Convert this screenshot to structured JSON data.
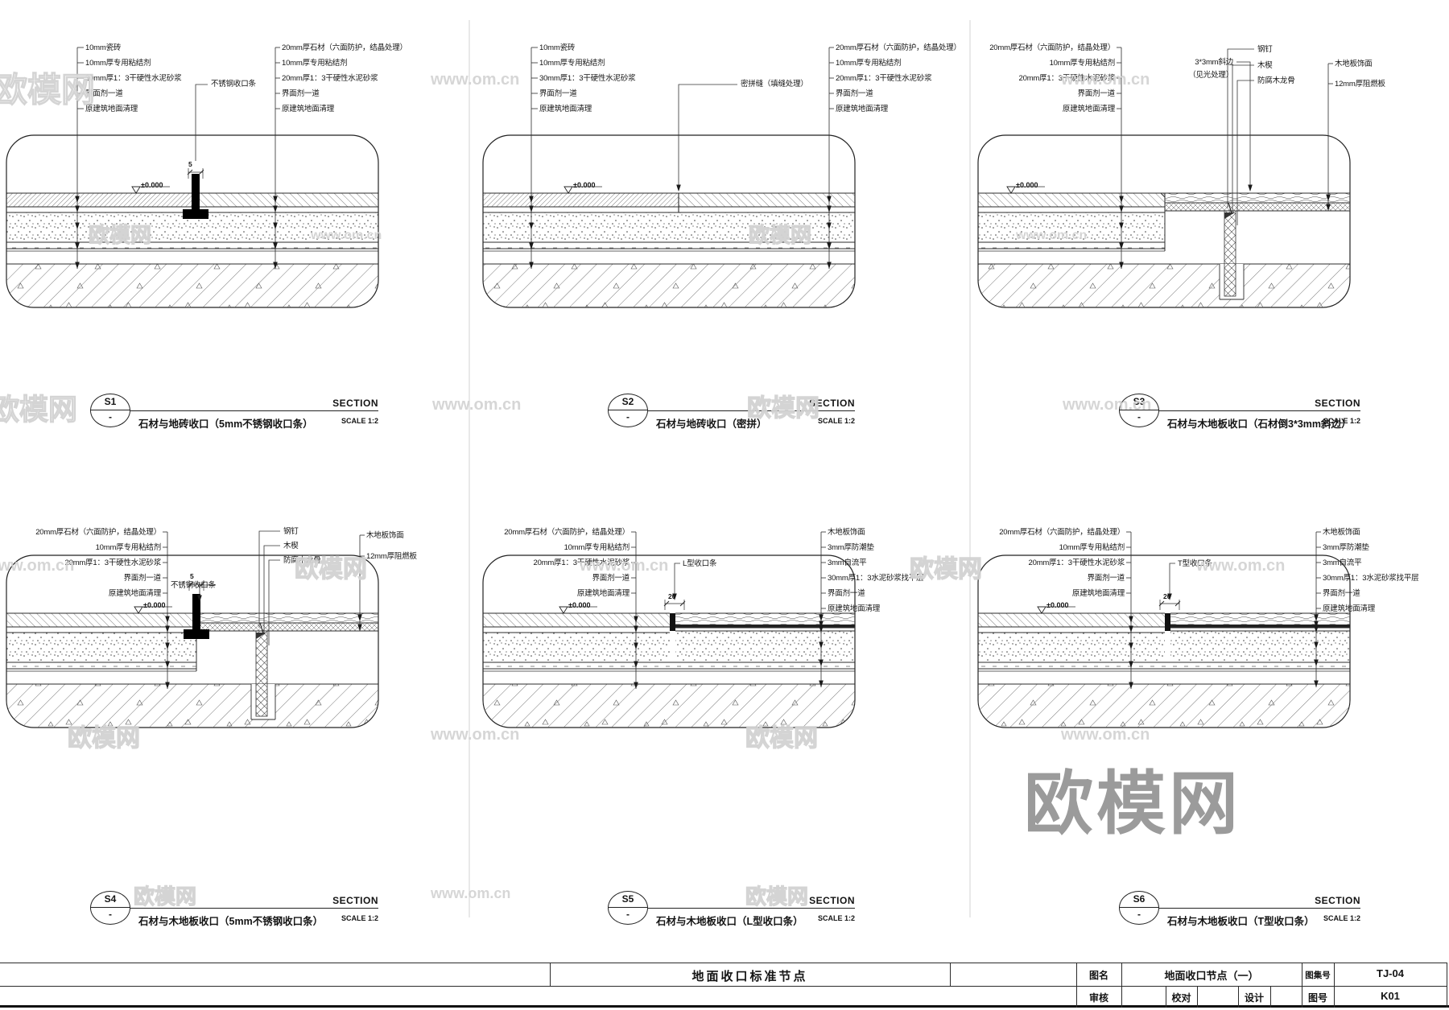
{
  "watermarks": {
    "brand": "欧模网",
    "url": "www.om.cn"
  },
  "common": {
    "section_label": "SECTION",
    "scale": "SCALE 1:2",
    "dash": "-",
    "level": "±0.000"
  },
  "sections": [
    {
      "id": "S1",
      "title": "石材与地砖收口（5mm不锈钢收口条）",
      "dim": "5",
      "label_mid": "不锈钢收口条",
      "labels_left": [
        "10mm瓷砖",
        "10mm厚专用粘结剂",
        "30mm厚1：3干硬性水泥砂浆",
        "界面剂一道",
        "原建筑地面清理"
      ],
      "labels_right": [
        "20mm厚石材（六面防护，结晶处理）",
        "10mm厚专用粘结剂",
        "20mm厚1：3干硬性水泥砂浆",
        "界面剂一道",
        "原建筑地面清理"
      ]
    },
    {
      "id": "S2",
      "title": "石材与地砖收口（密拼）",
      "dim": "",
      "label_mid": "密拼缝（填缝处理）",
      "labels_left": [
        "10mm瓷砖",
        "10mm厚专用粘结剂",
        "30mm厚1：3干硬性水泥砂浆",
        "界面剂一道",
        "原建筑地面清理"
      ],
      "labels_right": [
        "20mm厚石材（六面防护，结晶处理）",
        "10mm厚专用粘结剂",
        "20mm厚1：3干硬性水泥砂浆",
        "界面剂一道",
        "原建筑地面清理"
      ]
    },
    {
      "id": "S3",
      "title": "石材与木地板收口（石材倒3*3mm斜边）",
      "dim": "",
      "label_mid": "3*3mm斜边",
      "label_mid2": "（见光处理）",
      "labels_nail": [
        "钢钉",
        "木楔",
        "防腐木龙骨"
      ],
      "labels_left": [
        "20mm厚石材（六面防护，结晶处理）",
        "10mm厚专用粘结剂",
        "20mm厚1：3干硬性水泥砂浆",
        "界面剂一道",
        "原建筑地面清理"
      ],
      "labels_right": [
        "木地板饰面",
        "12mm厚阻燃板"
      ]
    },
    {
      "id": "S4",
      "title": "石材与木地板收口（5mm不锈钢收口条）",
      "dim": "5",
      "label_mid": "不锈钢收口条",
      "labels_nail": [
        "钢钉",
        "木楔",
        "防腐木龙骨"
      ],
      "labels_left": [
        "20mm厚石材（六面防护，结晶处理）",
        "10mm厚专用粘结剂",
        "20mm厚1：3干硬性水泥砂浆",
        "界面剂一道",
        "原建筑地面清理"
      ],
      "labels_right": [
        "木地板饰面",
        "12mm厚阻燃板"
      ]
    },
    {
      "id": "S5",
      "title": "石材与木地板收口（L型收口条）",
      "dim": "20",
      "label_mid": "L型收口条",
      "labels_left": [
        "20mm厚石材（六面防护，结晶处理）",
        "10mm厚专用粘结剂",
        "20mm厚1：3干硬性水泥砂浆",
        "界面剂一道",
        "原建筑地面清理"
      ],
      "labels_right": [
        "木地板饰面",
        "3mm厚防潮垫",
        "3mm自流平",
        "30mm厚1：3水泥砂浆找平层",
        "界面剂一道",
        "原建筑地面清理"
      ]
    },
    {
      "id": "S6",
      "title": "石材与木地板收口（T型收口条）",
      "dim": "20",
      "label_mid": "T型收口条",
      "labels_left": [
        "20mm厚石材（六面防护，结晶处理）",
        "10mm厚专用粘结剂",
        "20mm厚1：3干硬性水泥砂浆",
        "界面剂一道",
        "原建筑地面清理"
      ],
      "labels_right": [
        "木地板饰面",
        "3mm厚防潮垫",
        "3mm自流平",
        "30mm厚1：3水泥砂浆找平层",
        "界面剂一道",
        "原建筑地面清理"
      ]
    }
  ],
  "titleblock": {
    "footer": "地面收口标准节点",
    "name_label": "图名",
    "name": "地面收口节点（一）",
    "atlas_label": "图集号",
    "atlas": "TJ-04",
    "check_label": "审核",
    "proof_label": "校对",
    "design_label": "设计",
    "no_label": "图号",
    "no": "K01"
  }
}
